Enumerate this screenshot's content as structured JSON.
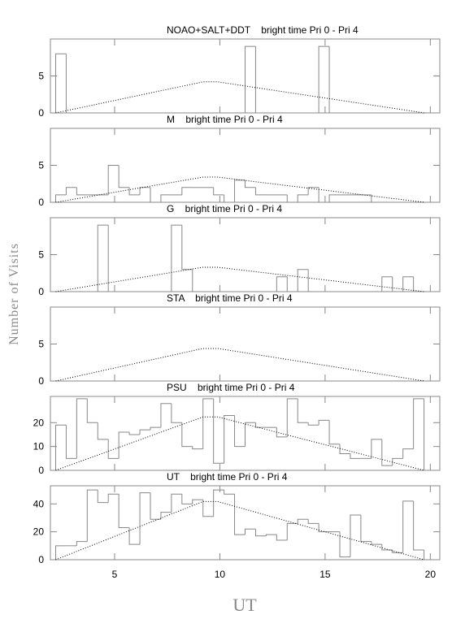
{
  "y_label": "Number of Visits",
  "x_label": "UT",
  "chart_data": [
    {
      "type": "histogram",
      "title": "NOAO+SALT+DDT    bright time Pri 0 - Pri 4",
      "color": "#888888",
      "bins": [
        2.2,
        2.7,
        3.2,
        3.7,
        4.2,
        4.7,
        5.2,
        5.7,
        6.2,
        6.7,
        7.2,
        7.7,
        8.2,
        8.7,
        9.2,
        9.7,
        10.2,
        10.7,
        11.2,
        11.7,
        12.2,
        12.7,
        13.2,
        13.7,
        14.2,
        14.7,
        15.2,
        15.7,
        16.2,
        16.7,
        17.2,
        17.7,
        18.2,
        18.7,
        19.2,
        19.7,
        20.2
      ],
      "values": [
        8,
        0,
        0,
        0,
        0,
        0,
        0,
        0,
        0,
        0,
        0,
        0,
        0,
        0,
        0,
        0,
        0,
        0,
        9,
        0,
        0,
        0,
        0,
        0,
        0,
        9,
        0,
        0,
        0,
        0,
        0,
        0,
        0,
        0,
        0,
        0
      ],
      "line": {
        "color": "#000000",
        "x": [
          2.2,
          9.2,
          9.9,
          19.7
        ],
        "values": [
          0,
          4.2,
          4.2,
          0
        ]
      },
      "xlim": [
        1.95,
        20.45
      ],
      "xticks": [
        5,
        10,
        15,
        20
      ],
      "ylim": [
        0,
        10
      ],
      "yticks": [
        0,
        5
      ]
    },
    {
      "type": "histogram",
      "title": "M    bright time Pri 0 - Pri 4",
      "color": "#888888",
      "bins": [
        2.2,
        2.7,
        3.2,
        3.7,
        4.2,
        4.7,
        5.2,
        5.7,
        6.2,
        6.7,
        7.2,
        7.7,
        8.2,
        8.7,
        9.2,
        9.7,
        10.2,
        10.7,
        11.2,
        11.7,
        12.2,
        12.7,
        13.2,
        13.7,
        14.2,
        14.7,
        15.2,
        15.7,
        16.2,
        16.7,
        17.2,
        17.7,
        18.2,
        18.7,
        19.2,
        19.7,
        20.2
      ],
      "values": [
        1,
        2,
        1,
        1,
        1,
        5,
        2,
        1,
        2,
        0,
        1,
        1,
        2,
        2,
        2,
        1,
        0,
        3,
        2,
        1,
        1,
        1,
        0,
        1,
        2,
        0,
        1,
        1,
        1,
        1,
        0,
        0,
        0,
        0,
        0,
        0
      ],
      "line": {
        "color": "#000000",
        "x": [
          2.2,
          9.2,
          9.9,
          19.7
        ],
        "values": [
          0,
          3.4,
          3.4,
          0
        ]
      },
      "xlim": [
        1.95,
        20.45
      ],
      "xticks": [
        5,
        10,
        15,
        20
      ],
      "ylim": [
        0,
        10
      ],
      "yticks": [
        0,
        5
      ]
    },
    {
      "type": "histogram",
      "title": "G    bright time Pri 0 - Pri 4",
      "color": "#888888",
      "bins": [
        2.2,
        2.7,
        3.2,
        3.7,
        4.2,
        4.7,
        5.2,
        5.7,
        6.2,
        6.7,
        7.2,
        7.7,
        8.2,
        8.7,
        9.2,
        9.7,
        10.2,
        10.7,
        11.2,
        11.7,
        12.2,
        12.7,
        13.2,
        13.7,
        14.2,
        14.7,
        15.2,
        15.7,
        16.2,
        16.7,
        17.2,
        17.7,
        18.2,
        18.7,
        19.2,
        19.7,
        20.2
      ],
      "values": [
        0,
        0,
        0,
        0,
        9,
        0,
        0,
        0,
        0,
        0,
        0,
        9,
        3,
        0,
        0,
        0,
        0,
        0,
        0,
        0,
        0,
        2,
        0,
        3,
        0,
        0,
        0,
        0,
        0,
        0,
        0,
        2,
        0,
        2,
        0,
        0
      ],
      "line": {
        "color": "#000000",
        "x": [
          2.2,
          9.2,
          9.9,
          19.7
        ],
        "values": [
          0,
          3.3,
          3.3,
          0
        ]
      },
      "xlim": [
        1.95,
        20.45
      ],
      "xticks": [
        5,
        10,
        15,
        20
      ],
      "ylim": [
        0,
        10
      ],
      "yticks": [
        0,
        5
      ]
    },
    {
      "type": "histogram",
      "title": "STA    bright time Pri 0 - Pri 4",
      "color": "#888888",
      "bins": [
        2.2,
        2.7,
        3.2,
        3.7,
        4.2,
        4.7,
        5.2,
        5.7,
        6.2,
        6.7,
        7.2,
        7.7,
        8.2,
        8.7,
        9.2,
        9.7,
        10.2,
        10.7,
        11.2,
        11.7,
        12.2,
        12.7,
        13.2,
        13.7,
        14.2,
        14.7,
        15.2,
        15.7,
        16.2,
        16.7,
        17.2,
        17.7,
        18.2,
        18.7,
        19.2,
        19.7,
        20.2
      ],
      "values": [
        0,
        0,
        0,
        0,
        0,
        0,
        0,
        0,
        0,
        0,
        0,
        0,
        0,
        0,
        0,
        0,
        0,
        0,
        0,
        0,
        0,
        0,
        0,
        0,
        0,
        0,
        0,
        0,
        0,
        0,
        0,
        0,
        0,
        0,
        0,
        0
      ],
      "line": {
        "color": "#000000",
        "x": [
          2.2,
          9.2,
          9.9,
          19.7
        ],
        "values": [
          0,
          4.4,
          4.4,
          0
        ]
      },
      "xlim": [
        1.95,
        20.45
      ],
      "xticks": [
        5,
        10,
        15,
        20
      ],
      "ylim": [
        0,
        10
      ],
      "yticks": [
        0,
        5
      ]
    },
    {
      "type": "histogram",
      "title": "PSU    bright time Pri 0 - Pri 4",
      "color": "#888888",
      "bins": [
        2.2,
        2.7,
        3.2,
        3.7,
        4.2,
        4.7,
        5.2,
        5.7,
        6.2,
        6.7,
        7.2,
        7.7,
        8.2,
        8.7,
        9.2,
        9.7,
        10.2,
        10.7,
        11.2,
        11.7,
        12.2,
        12.7,
        13.2,
        13.7,
        14.2,
        14.7,
        15.2,
        15.7,
        16.2,
        16.7,
        17.2,
        17.7,
        18.2,
        18.7,
        19.2,
        19.7,
        20.2
      ],
      "values": [
        19,
        5,
        30,
        20,
        13,
        5,
        16,
        15,
        17,
        18,
        28,
        20,
        10,
        9,
        30,
        3,
        23,
        10,
        20,
        18,
        18,
        14,
        30,
        20,
        19,
        21,
        11,
        7,
        5,
        5,
        13,
        2,
        5,
        9,
        30,
        0
      ],
      "line": {
        "color": "#000000",
        "x": [
          2.2,
          9.2,
          9.9,
          19.7
        ],
        "values": [
          0,
          22.4,
          22.4,
          0
        ]
      },
      "xlim": [
        1.95,
        20.45
      ],
      "xticks": [
        5,
        10,
        15,
        20
      ],
      "ylim": [
        0,
        31
      ],
      "yticks": [
        0,
        10,
        20
      ]
    },
    {
      "type": "histogram",
      "title": "UT    bright time Pri 0 - Pri 4",
      "color": "#888888",
      "bins": [
        2.2,
        2.7,
        3.2,
        3.7,
        4.2,
        4.7,
        5.2,
        5.7,
        6.2,
        6.7,
        7.2,
        7.7,
        8.2,
        8.7,
        9.2,
        9.7,
        10.2,
        10.7,
        11.2,
        11.7,
        12.2,
        12.7,
        13.2,
        13.7,
        14.2,
        14.7,
        15.2,
        15.7,
        16.2,
        16.7,
        17.2,
        17.7,
        18.2,
        18.7,
        19.2,
        19.7,
        20.2
      ],
      "values": [
        10,
        10,
        13,
        50,
        41,
        47,
        23,
        11,
        48,
        29,
        34,
        47,
        40,
        43,
        31,
        50,
        47,
        18,
        22,
        17,
        18,
        14,
        26,
        29,
        26,
        20,
        20,
        2,
        32,
        13,
        11,
        7,
        5,
        42,
        7,
        0
      ],
      "line": {
        "color": "#000000",
        "x": [
          2.2,
          9.2,
          9.9,
          19.7
        ],
        "values": [
          0,
          41.7,
          41.7,
          0
        ]
      },
      "xlim": [
        1.95,
        20.45
      ],
      "xticks": [
        5,
        10,
        15,
        20
      ],
      "ylim": [
        0,
        53
      ],
      "yticks": [
        0,
        20,
        40
      ],
      "show_xtick_labels": true
    }
  ]
}
